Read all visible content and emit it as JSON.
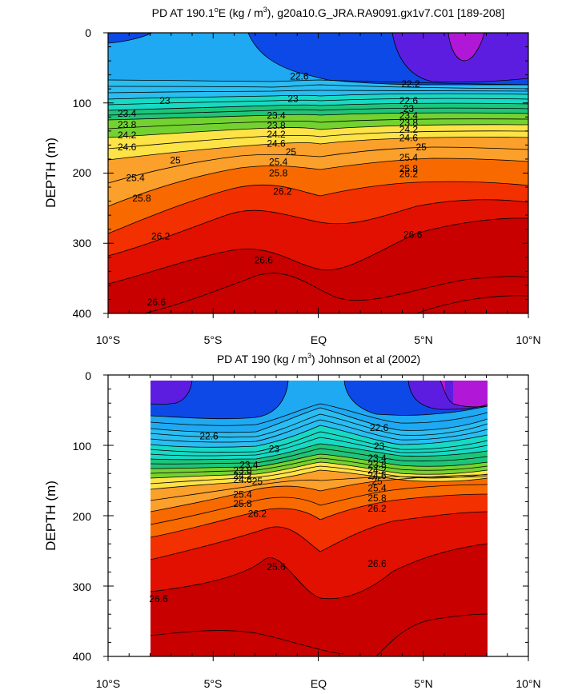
{
  "chart_data": [
    {
      "type": "contour",
      "title_main": "PD AT 190.1",
      "title_sup": "o",
      "title_rest": "E (kg / m",
      "title_sup2": "3",
      "title_end": "), g20a10.G_JRA.RA9091.gx1v7.C01 [189-208]",
      "ylabel": "DEPTH (m)",
      "x_ticks": [
        "10°S",
        "5°S",
        "EQ",
        "5°N",
        "10°N"
      ],
      "y_ticks": [
        "0",
        "100",
        "200",
        "300",
        "400"
      ],
      "xlim": [
        -10,
        10
      ],
      "ylim": [
        0,
        400
      ],
      "y_reversed": true,
      "data_xlim": [
        -10,
        10
      ],
      "contour_labels": [
        {
          "text": "22.6",
          "x": -0.9,
          "y": 62
        },
        {
          "text": "22.2",
          "x": 4.4,
          "y": 73
        },
        {
          "text": "23",
          "x": -7.3,
          "y": 97
        },
        {
          "text": "23",
          "x": -1.2,
          "y": 94
        },
        {
          "text": "22.6",
          "x": 4.3,
          "y": 97
        },
        {
          "text": "23.4",
          "x": -9.1,
          "y": 115
        },
        {
          "text": "23.4",
          "x": -2.0,
          "y": 118
        },
        {
          "text": "23",
          "x": 4.3,
          "y": 108
        },
        {
          "text": "23.8",
          "x": -9.1,
          "y": 131
        },
        {
          "text": "23.8",
          "x": -2.0,
          "y": 132
        },
        {
          "text": "23.4",
          "x": 4.3,
          "y": 118
        },
        {
          "text": "24.2",
          "x": -9.1,
          "y": 146
        },
        {
          "text": "24.2",
          "x": -2.0,
          "y": 145
        },
        {
          "text": "23.8",
          "x": 4.3,
          "y": 128
        },
        {
          "text": "24.6",
          "x": -9.1,
          "y": 163
        },
        {
          "text": "24.6",
          "x": -2.0,
          "y": 158
        },
        {
          "text": "24.2",
          "x": 4.3,
          "y": 138
        },
        {
          "text": "25",
          "x": -6.8,
          "y": 182
        },
        {
          "text": "25",
          "x": -1.3,
          "y": 170
        },
        {
          "text": "24.6",
          "x": 4.3,
          "y": 150
        },
        {
          "text": "25.4",
          "x": -8.7,
          "y": 207
        },
        {
          "text": "25.4",
          "x": -1.9,
          "y": 184
        },
        {
          "text": "25",
          "x": 4.9,
          "y": 163
        },
        {
          "text": "25.8",
          "x": -8.4,
          "y": 236
        },
        {
          "text": "25.8",
          "x": -1.9,
          "y": 200
        },
        {
          "text": "25.4",
          "x": 4.3,
          "y": 178
        },
        {
          "text": "26.2",
          "x": -7.5,
          "y": 290
        },
        {
          "text": "26.2",
          "x": -1.7,
          "y": 226
        },
        {
          "text": "25.8",
          "x": 4.3,
          "y": 194
        },
        {
          "text": "26.6",
          "x": -2.6,
          "y": 324
        },
        {
          "text": "26.6",
          "x": 4.5,
          "y": 288
        },
        {
          "text": "26.2",
          "x": 4.3,
          "y": 201
        },
        {
          "text": "26.6",
          "x": -7.7,
          "y": 384
        }
      ]
    },
    {
      "type": "contour",
      "title_main": "PD AT 190 (kg / m",
      "title_sup": "3",
      "title_end": ") Johnson et al (2002)",
      "ylabel": "DEPTH (m)",
      "x_ticks": [
        "10°S",
        "5°S",
        "EQ",
        "5°N",
        "10°N"
      ],
      "y_ticks": [
        "0",
        "100",
        "200",
        "300",
        "400"
      ],
      "xlim": [
        -10,
        10
      ],
      "ylim": [
        0,
        400
      ],
      "y_reversed": true,
      "data_xlim": [
        -8,
        8
      ],
      "contour_labels": [
        {
          "text": "22.6",
          "x": -5.2,
          "y": 87
        },
        {
          "text": "22.6",
          "x": 2.9,
          "y": 75
        },
        {
          "text": "23",
          "x": -2.1,
          "y": 105
        },
        {
          "text": "23",
          "x": 2.9,
          "y": 101
        },
        {
          "text": "23.4",
          "x": -3.3,
          "y": 128
        },
        {
          "text": "23.4",
          "x": 2.8,
          "y": 118
        },
        {
          "text": "23.8",
          "x": -3.6,
          "y": 136
        },
        {
          "text": "23.8",
          "x": 2.8,
          "y": 127
        },
        {
          "text": "24.2",
          "x": -3.6,
          "y": 143
        },
        {
          "text": "24.2",
          "x": 2.8,
          "y": 135
        },
        {
          "text": "24.6",
          "x": -3.6,
          "y": 149
        },
        {
          "text": "24.6",
          "x": 2.8,
          "y": 143
        },
        {
          "text": "25",
          "x": -2.9,
          "y": 151
        },
        {
          "text": "25",
          "x": 2.8,
          "y": 151
        },
        {
          "text": "25.4",
          "x": -3.6,
          "y": 170
        },
        {
          "text": "25.4",
          "x": 2.8,
          "y": 161
        },
        {
          "text": "25.8",
          "x": -3.6,
          "y": 183
        },
        {
          "text": "25.8",
          "x": 2.8,
          "y": 175
        },
        {
          "text": "26.2",
          "x": -2.9,
          "y": 197
        },
        {
          "text": "26.2",
          "x": 2.8,
          "y": 190
        },
        {
          "text": "25.6",
          "x": -2.0,
          "y": 273
        },
        {
          "text": "26.6",
          "x": 2.8,
          "y": 268
        },
        {
          "text": "26.6",
          "x": -7.6,
          "y": 318
        }
      ]
    }
  ]
}
